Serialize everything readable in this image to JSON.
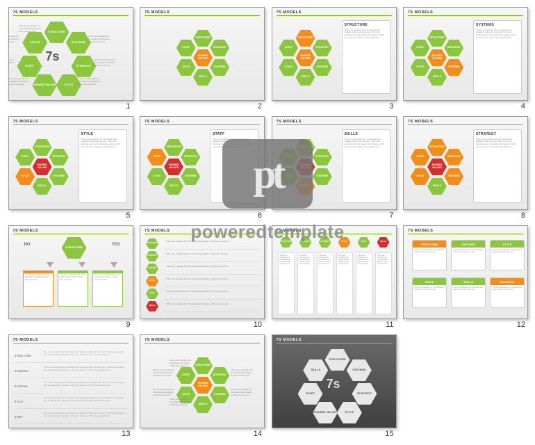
{
  "brand": "7S MODELS",
  "watermark": {
    "logo_text": "pt",
    "caption": "poweredtemplate"
  },
  "colors": {
    "green": "#8cc63f",
    "green_dark": "#6da32a",
    "orange": "#f28c1a",
    "red": "#d32f2f",
    "gray_hex": "#e0e0e0",
    "header_green": "#7ab800"
  },
  "hex_labels": {
    "structure": "STRUCTURE",
    "systems": "SYSTEMS",
    "strategy": "STRATEGY",
    "style": "STYLE",
    "staff": "STAFF",
    "skills": "SKILLS",
    "shared": "SHARED\nVALUES"
  },
  "sample_text": "This is an example text. Go ahead and replace it with your own text.",
  "sample_text_long": "This is an example text. Go ahead and replace it with your own text. This is an example text. Go ahead and replace it with your own text. This is an example text.",
  "slides": [
    {
      "n": 1,
      "layout": "radial-callouts",
      "center_text": "7s",
      "center_color": null
    },
    {
      "n": 2,
      "layout": "cluster",
      "center": "shared",
      "center_color": "orange",
      "highlight": []
    },
    {
      "n": 3,
      "layout": "cluster-side",
      "center": "shared",
      "center_color": "orange",
      "highlight": [
        "structure"
      ],
      "highlight_color": "orange",
      "panel_title": "STRUCTURE"
    },
    {
      "n": 4,
      "layout": "cluster-side",
      "center": "shared",
      "center_color": "orange",
      "highlight": [
        "systems"
      ],
      "highlight_color": "orange",
      "panel_title": "SYSTEMS"
    },
    {
      "n": 5,
      "layout": "cluster-side",
      "center": "shared",
      "center_color": "red",
      "highlight": [
        "style"
      ],
      "highlight_color": "orange",
      "panel_title": "STYLE"
    },
    {
      "n": 6,
      "layout": "cluster-side",
      "center": "shared",
      "center_color": "red",
      "highlight": [
        "staff"
      ],
      "highlight_color": "orange",
      "panel_title": "STAFF"
    },
    {
      "n": 7,
      "layout": "cluster-side",
      "center": "shared",
      "center_color": "red",
      "highlight": [
        "skills"
      ],
      "highlight_color": "orange",
      "panel_title": "SKILLS"
    },
    {
      "n": 8,
      "layout": "cluster-side",
      "center": "shared",
      "center_color": "red",
      "highlight": [
        "strategy",
        "structure",
        "systems",
        "style",
        "staff"
      ],
      "highlight_color": "orange",
      "panel_title": "STRATEGY"
    },
    {
      "n": 9,
      "layout": "decision",
      "top_label": "STRUCTURE",
      "no": "NO",
      "yes": "YES",
      "cols": [
        {
          "c": "orange"
        },
        {
          "c": "green"
        },
        {
          "c": "green"
        }
      ]
    },
    {
      "n": 10,
      "layout": "rows",
      "rows": [
        "STRUCTURE",
        "STRATEGY",
        "SYSTEMS",
        "STYLE",
        "STAFF",
        "SKILLS"
      ],
      "row_colors": [
        "green",
        "green",
        "green",
        "orange",
        "green",
        "red"
      ]
    },
    {
      "n": 11,
      "layout": "columns",
      "cols": [
        "STRUCTURE",
        "STRATEGY",
        "SYSTEMS",
        "STYLE",
        "STAFF",
        "SKILLS"
      ],
      "col_colors": [
        "green",
        "green",
        "green",
        "orange",
        "green",
        "red"
      ]
    },
    {
      "n": 12,
      "layout": "gridboxes",
      "boxes": [
        {
          "t": "STRUCTURE",
          "c": "orange"
        },
        {
          "t": "SYSTEMS",
          "c": "green"
        },
        {
          "t": "STYLE",
          "c": "green"
        },
        {
          "t": "STAFF",
          "c": "green"
        },
        {
          "t": "SKILLS",
          "c": "green"
        },
        {
          "t": "STRATEGY",
          "c": "orange"
        }
      ]
    },
    {
      "n": 13,
      "layout": "table",
      "rows": [
        "STRUCTURE",
        "STRATEGY",
        "SYSTEMS",
        "STYLE",
        "STAFF"
      ]
    },
    {
      "n": 14,
      "layout": "cluster-callouts",
      "center": "shared",
      "center_color": "orange"
    },
    {
      "n": 15,
      "layout": "radial-dark",
      "center_text": "7s"
    }
  ]
}
